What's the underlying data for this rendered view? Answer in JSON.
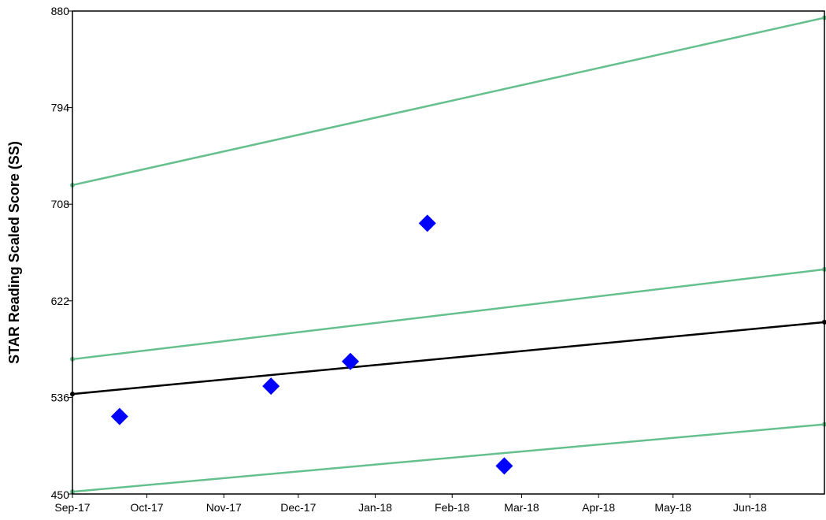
{
  "chart_data": {
    "type": "scatter",
    "ylabel": "STAR Reading Scaled Score (SS)",
    "xlabel": "",
    "ylim": [
      450,
      880
    ],
    "y_ticks": [
      "450",
      "536",
      "622",
      "708",
      "794",
      "880"
    ],
    "x_range": [
      "2017-09-01",
      "2018-07-01"
    ],
    "x_ticks": [
      {
        "date": "2017-09-01",
        "label": "Sep-17"
      },
      {
        "date": "2017-10-01",
        "label": "Oct-17"
      },
      {
        "date": "2017-11-01",
        "label": "Nov-17"
      },
      {
        "date": "2017-12-01",
        "label": "Dec-17"
      },
      {
        "date": "2018-01-01",
        "label": "Jan-18"
      },
      {
        "date": "2018-02-01",
        "label": "Feb-18"
      },
      {
        "date": "2018-03-01",
        "label": "Mar-18"
      },
      {
        "date": "2018-04-01",
        "label": "Apr-18"
      },
      {
        "date": "2018-05-01",
        "label": "May-18"
      },
      {
        "date": "2018-06-01",
        "label": "Jun-18"
      }
    ],
    "scores": [
      {
        "x": "2017-09-20",
        "y": 519
      },
      {
        "x": "2017-11-20",
        "y": 546
      },
      {
        "x": "2017-12-22",
        "y": 568
      },
      {
        "x": "2018-01-22",
        "y": 691
      },
      {
        "x": "2018-02-22",
        "y": 475
      }
    ],
    "goal_line": {
      "start": [
        "2017-09-01",
        539
      ],
      "end": [
        "2018-07-01",
        603
      ],
      "color": "#000000"
    },
    "trend_lines": [
      {
        "start": [
          "2017-09-01",
          725
        ],
        "end": [
          "2018-07-01",
          874
        ],
        "color": "#66c08e"
      },
      {
        "start": [
          "2017-09-01",
          570
        ],
        "end": [
          "2018-07-01",
          650
        ],
        "color": "#66c08e"
      },
      {
        "start": [
          "2017-09-01",
          452
        ],
        "end": [
          "2018-07-01",
          512
        ],
        "color": "#66c08e"
      }
    ],
    "marker_color": "#0000ff",
    "grid": false
  }
}
